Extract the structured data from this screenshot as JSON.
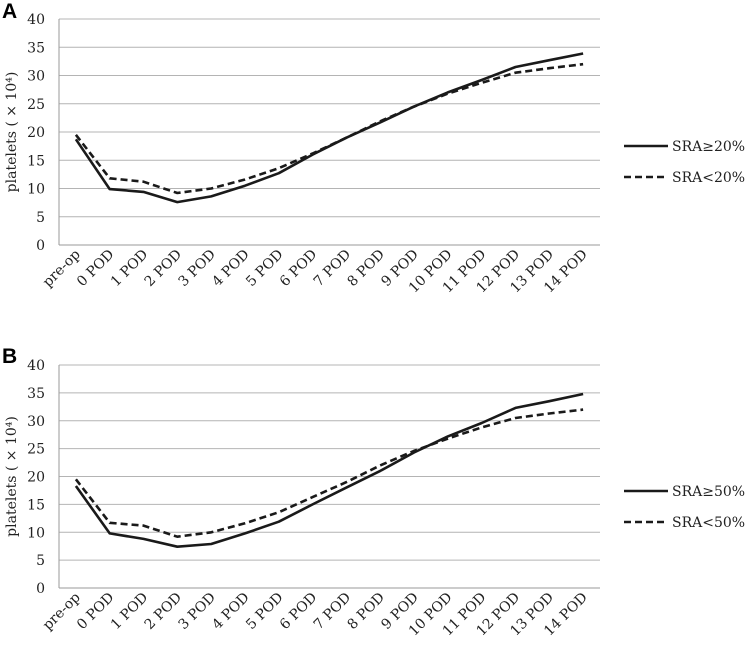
{
  "chart_data": [
    {
      "type": "line",
      "panel_label": "A",
      "ylabel": "platelets ( × 10⁴)",
      "ylim": [
        0,
        40
      ],
      "y_ticks": [
        0,
        5,
        10,
        15,
        20,
        25,
        30,
        35,
        40
      ],
      "categories": [
        "pre-op",
        "0 POD",
        "1 POD",
        "2 POD",
        "3 POD",
        "4 POD",
        "5 POD",
        "6 POD",
        "7 POD",
        "8 POD",
        "9 POD",
        "10 POD",
        "11 POD",
        "12 POD",
        "13 POD",
        "14 POD"
      ],
      "grid": true,
      "legend": "right",
      "series": [
        {
          "name": "SRA≥20%",
          "style": "solid",
          "values": [
            18.7,
            9.9,
            9.4,
            7.6,
            8.6,
            10.5,
            12.7,
            16.0,
            19.0,
            21.7,
            24.5,
            27.0,
            29.2,
            31.5,
            32.7,
            33.9
          ]
        },
        {
          "name": "SRA<20%",
          "style": "dashed",
          "values": [
            19.5,
            11.8,
            11.2,
            9.2,
            10.0,
            11.6,
            13.6,
            16.2,
            19.0,
            21.9,
            24.5,
            26.8,
            28.7,
            30.5,
            31.3,
            32.0
          ]
        }
      ]
    },
    {
      "type": "line",
      "panel_label": "B",
      "ylabel": "platelets ( × 10⁴)",
      "ylim": [
        0,
        40
      ],
      "y_ticks": [
        0,
        5,
        10,
        15,
        20,
        25,
        30,
        35,
        40
      ],
      "categories": [
        "pre-op",
        "0 POD",
        "1 POD",
        "2 POD",
        "3 POD",
        "4 POD",
        "5 POD",
        "6 POD",
        "7 POD",
        "8 POD",
        "9 POD",
        "10 POD",
        "11 POD",
        "12 POD",
        "13 POD",
        "14 POD"
      ],
      "grid": true,
      "legend": "right",
      "series": [
        {
          "name": "SRA≥50%",
          "style": "solid",
          "values": [
            18.3,
            9.8,
            8.8,
            7.4,
            7.9,
            9.8,
            11.9,
            15.0,
            18.0,
            21.0,
            24.3,
            27.2,
            29.6,
            32.3,
            33.5,
            34.8
          ]
        },
        {
          "name": "SRA<50%",
          "style": "dashed",
          "values": [
            19.5,
            11.7,
            11.2,
            9.2,
            10.0,
            11.6,
            13.6,
            16.3,
            19.0,
            22.0,
            24.6,
            26.8,
            28.8,
            30.5,
            31.3,
            32.0
          ]
        }
      ]
    }
  ]
}
